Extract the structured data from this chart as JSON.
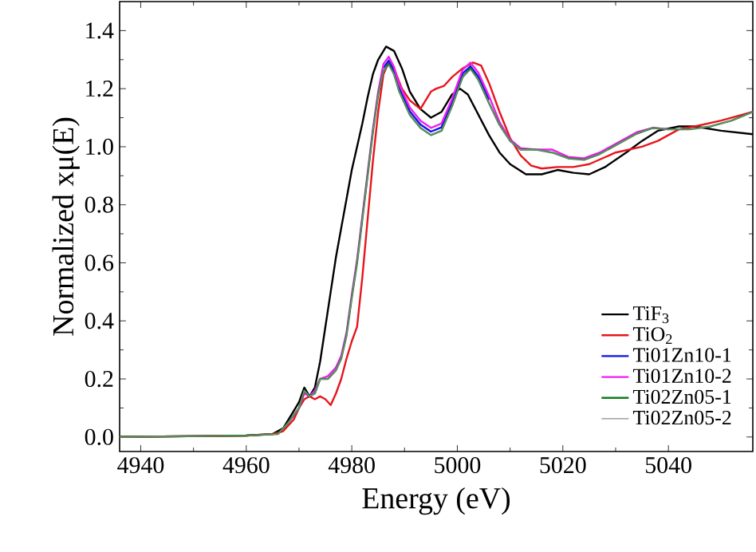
{
  "chart_data": {
    "type": "line",
    "xlabel": "Energy (eV)",
    "ylabel": "Normalized xμ(E)",
    "xlim": [
      4936,
      5056
    ],
    "ylim": [
      -0.05,
      1.5
    ],
    "xticks": [
      4940,
      4960,
      4980,
      5000,
      5020,
      5040
    ],
    "yticks": [
      {
        "value": 0,
        "label": "0.0"
      },
      {
        "value": 0.2,
        "label": "0.2"
      },
      {
        "value": 0.4,
        "label": "0.4"
      },
      {
        "value": 0.6,
        "label": "0.6"
      },
      {
        "value": 0.8,
        "label": "0.8"
      },
      {
        "value": 1,
        "label": "1.0"
      },
      {
        "value": 1.2,
        "label": "1.2"
      },
      {
        "value": 1.4,
        "label": "1.4"
      }
    ],
    "grid": false,
    "legend": "bottom right",
    "marker": "none",
    "line_style": "solid",
    "series": [
      {
        "name": "TiF$_{3}$",
        "color": "#000000",
        "x": [
          4936,
          4960,
          4965,
          4967,
          4969,
          4970,
          4971,
          4972,
          4973,
          4974,
          4975,
          4976,
          4977,
          4978,
          4979,
          4980,
          4981,
          4982,
          4983,
          4984,
          4985,
          4986.5,
          4988,
          4989.5,
          4991,
          4993,
          4995,
          4997,
          4999,
          5000.5,
          5002,
          5004,
          5006,
          5008,
          5010,
          5013,
          5016,
          5019,
          5022,
          5025,
          5028,
          5032,
          5035,
          5038,
          5042,
          5045,
          5050,
          5056
        ],
        "values": [
          0,
          0.005,
          0.01,
          0.03,
          0.09,
          0.12,
          0.17,
          0.14,
          0.17,
          0.26,
          0.38,
          0.5,
          0.62,
          0.72,
          0.82,
          0.92,
          1.0,
          1.08,
          1.17,
          1.25,
          1.3,
          1.345,
          1.33,
          1.27,
          1.19,
          1.13,
          1.1,
          1.12,
          1.18,
          1.2,
          1.18,
          1.11,
          1.04,
          0.98,
          0.94,
          0.905,
          0.905,
          0.92,
          0.91,
          0.905,
          0.93,
          0.98,
          1.02,
          1.055,
          1.07,
          1.07,
          1.055,
          1.043
        ]
      },
      {
        "name": "TiO$_{2}$",
        "color": "#e8141c",
        "x": [
          4936,
          4960,
          4965,
          4967,
          4969,
          4970,
          4971,
          4972,
          4973,
          4974,
          4975,
          4976,
          4977,
          4978,
          4979,
          4980,
          4981,
          4982,
          4983,
          4984,
          4985,
          4986,
          4987,
          4988,
          4989.5,
          4991,
          4993,
          4995,
          4996,
          4997.5,
          4999,
          5001,
          5003,
          5004.5,
          5006,
          5008,
          5010,
          5012,
          5014,
          5016,
          5019,
          5022,
          5025,
          5030,
          5035,
          5038,
          5040,
          5042,
          5045,
          5050,
          5056
        ],
        "values": [
          0,
          0.005,
          0.01,
          0.02,
          0.06,
          0.1,
          0.13,
          0.14,
          0.13,
          0.14,
          0.13,
          0.11,
          0.15,
          0.2,
          0.27,
          0.33,
          0.38,
          0.55,
          0.75,
          0.95,
          1.12,
          1.25,
          1.29,
          1.27,
          1.2,
          1.16,
          1.13,
          1.19,
          1.2,
          1.21,
          1.24,
          1.27,
          1.29,
          1.28,
          1.22,
          1.12,
          1.03,
          0.97,
          0.935,
          0.925,
          0.93,
          0.93,
          0.94,
          0.98,
          1.0,
          1.02,
          1.04,
          1.06,
          1.07,
          1.09,
          1.12
        ]
      },
      {
        "name": "Ti01Zn10-1",
        "color": "#0a14e6",
        "x": [
          4986,
          4987,
          4988,
          4989,
          4991,
          4993,
          4995,
          4997,
          4999,
          5001,
          5002.5,
          5004,
          5006
        ],
        "values": [
          1.272,
          1.297,
          1.262,
          1.202,
          1.122,
          1.077,
          1.052,
          1.067,
          1.152,
          1.252,
          1.277,
          1.242,
          1.162
        ]
      },
      {
        "name": "Ti01Zn10-2",
        "color": "#f01ef0",
        "x": [
          4968,
          4970,
          4971,
          4972,
          4973,
          4974,
          4975.5,
          4977,
          4978,
          4979,
          4980,
          4981,
          4982,
          4983,
          4984,
          4985,
          4986,
          4987,
          4988,
          4989,
          4991,
          4993,
          4995,
          4997,
          4999,
          5001,
          5002.5,
          5004,
          5006,
          5008,
          5010,
          5012,
          5015,
          5018,
          5021,
          5024,
          5027,
          5030,
          5034,
          5037,
          5040
        ],
        "values": [
          0.05,
          0.1,
          0.15,
          0.14,
          0.16,
          0.2,
          0.21,
          0.24,
          0.28,
          0.36,
          0.49,
          0.61,
          0.76,
          0.91,
          1.06,
          1.19,
          1.285,
          1.31,
          1.275,
          1.215,
          1.135,
          1.09,
          1.065,
          1.08,
          1.165,
          1.265,
          1.29,
          1.255,
          1.175,
          1.085,
          1.025,
          0.995,
          0.99,
          0.99,
          0.965,
          0.96,
          0.98,
          1.01,
          1.05,
          1.065,
          1.06
        ]
      },
      {
        "name": "Ti02Zn05-1",
        "color": "#0f7d1e",
        "x": [
          4936,
          4960,
          4966,
          4968,
          4970,
          4971,
          4972,
          4973,
          4974,
          4975.5,
          4977,
          4978,
          4979,
          4980,
          4981,
          4982,
          4983,
          4984,
          4985,
          4986,
          4987,
          4988,
          4989,
          4991,
          4993,
          4995,
          4997,
          4999,
          5001,
          5002.5,
          5004,
          5006,
          5008,
          5010,
          5012,
          5015,
          5018,
          5021,
          5024,
          5027,
          5030,
          5034,
          5037,
          5040,
          5044,
          5048,
          5052,
          5056
        ],
        "values": [
          0,
          0.005,
          0.01,
          0.05,
          0.1,
          0.16,
          0.14,
          0.15,
          0.2,
          0.2,
          0.23,
          0.27,
          0.35,
          0.48,
          0.6,
          0.75,
          0.9,
          1.05,
          1.18,
          1.26,
          1.285,
          1.25,
          1.19,
          1.11,
          1.065,
          1.04,
          1.055,
          1.14,
          1.24,
          1.27,
          1.23,
          1.15,
          1.075,
          1.02,
          0.99,
          0.99,
          0.98,
          0.96,
          0.955,
          0.975,
          1.005,
          1.045,
          1.065,
          1.06,
          1.06,
          1.07,
          1.09,
          1.12
        ]
      },
      {
        "name": "Ti02Zn05-2",
        "color": "#8c8c8c",
        "x": [
          4936,
          4960,
          4966,
          4968,
          4970,
          4971,
          4972,
          4973,
          4974,
          4975.5,
          4977,
          4978,
          4979,
          4980,
          4981,
          4982,
          4983,
          4984,
          4985,
          4986,
          4987,
          4988,
          4989,
          4991,
          4993,
          4995,
          4997,
          4999,
          5001,
          5002.5,
          5004,
          5006,
          5008,
          5010,
          5012,
          5015,
          5018,
          5021,
          5024,
          5027,
          5030,
          5034,
          5037,
          5040,
          5044,
          5048,
          5052,
          5056
        ],
        "values": [
          0,
          0.005,
          0.01,
          0.05,
          0.1,
          0.16,
          0.14,
          0.15,
          0.2,
          0.2,
          0.23,
          0.27,
          0.35,
          0.48,
          0.6,
          0.75,
          0.9,
          1.05,
          1.18,
          1.26,
          1.28,
          1.25,
          1.19,
          1.11,
          1.065,
          1.04,
          1.055,
          1.14,
          1.24,
          1.265,
          1.23,
          1.15,
          1.075,
          1.02,
          0.99,
          0.99,
          0.98,
          0.96,
          0.955,
          0.975,
          1.005,
          1.045,
          1.065,
          1.06,
          1.06,
          1.07,
          1.09,
          1.12
        ]
      }
    ]
  }
}
